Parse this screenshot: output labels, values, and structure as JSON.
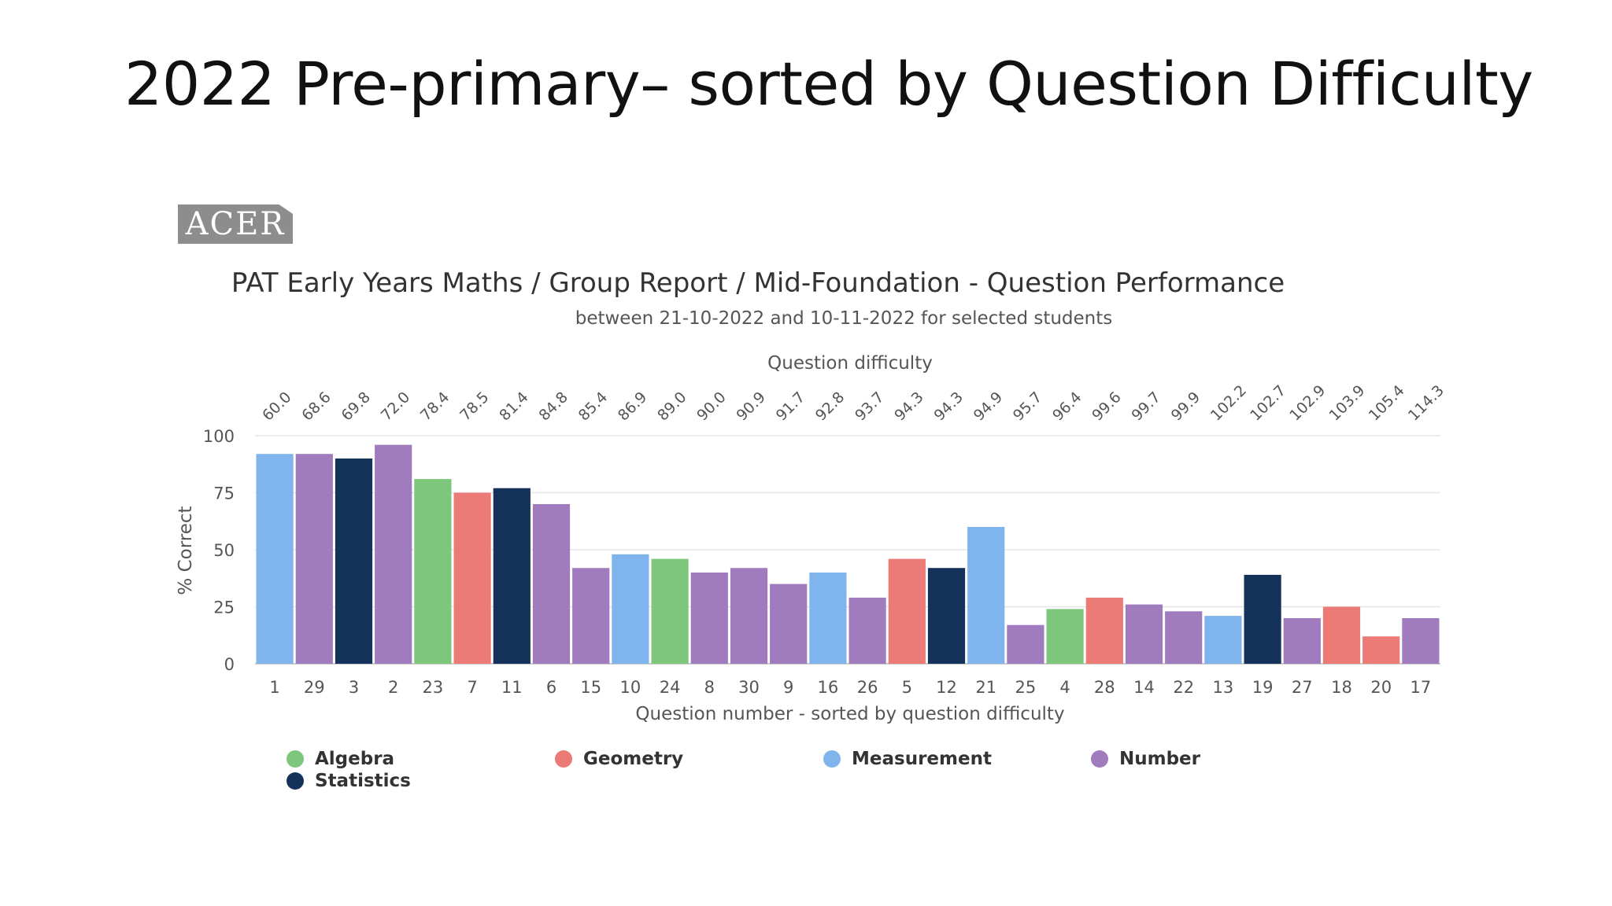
{
  "slide": {
    "title": "2022 Pre-primary– sorted by Question Difficulty"
  },
  "logo": {
    "text": "ACER"
  },
  "chart_data": {
    "type": "bar",
    "title": "PAT Early Years Maths / Group Report / Mid-Foundation - Question Performance",
    "subtitle": "between 21-10-2022 and 10-11-2022 for selected students",
    "xlabel": "Question number - sorted by question difficulty",
    "ylabel": "% Correct",
    "top_axis_label": "Question difficulty",
    "ylim": [
      0,
      100
    ],
    "yticks": [
      0,
      25,
      50,
      75,
      100
    ],
    "grid": true,
    "legend_position": "bottom-left",
    "categories": [
      "1",
      "29",
      "3",
      "2",
      "23",
      "7",
      "11",
      "6",
      "15",
      "10",
      "24",
      "8",
      "30",
      "9",
      "16",
      "26",
      "5",
      "12",
      "21",
      "25",
      "4",
      "28",
      "14",
      "22",
      "13",
      "19",
      "27",
      "18",
      "20",
      "17"
    ],
    "difficulty": [
      "60.0",
      "68.6",
      "69.8",
      "72.0",
      "78.4",
      "78.5",
      "81.4",
      "84.8",
      "85.4",
      "86.9",
      "89.0",
      "90.0",
      "90.9",
      "91.7",
      "92.8",
      "93.7",
      "94.3",
      "94.3",
      "94.9",
      "95.7",
      "96.4",
      "99.6",
      "99.7",
      "99.9",
      "102.2",
      "102.7",
      "102.9",
      "103.9",
      "105.4",
      "114.3"
    ],
    "values": [
      92,
      92,
      90,
      96,
      81,
      75,
      77,
      70,
      42,
      48,
      46,
      40,
      42,
      35,
      40,
      29,
      46,
      42,
      60,
      17,
      24,
      29,
      26,
      23,
      21,
      39,
      20,
      25,
      12,
      20
    ],
    "strands": [
      "Measurement",
      "Number",
      "Statistics",
      "Number",
      "Algebra",
      "Geometry",
      "Statistics",
      "Number",
      "Number",
      "Measurement",
      "Algebra",
      "Number",
      "Number",
      "Number",
      "Measurement",
      "Number",
      "Geometry",
      "Statistics",
      "Measurement",
      "Number",
      "Algebra",
      "Geometry",
      "Number",
      "Number",
      "Measurement",
      "Statistics",
      "Number",
      "Geometry",
      "Geometry",
      "Number"
    ],
    "series": [
      {
        "name": "Algebra",
        "color": "#7dc67b"
      },
      {
        "name": "Geometry",
        "color": "#ec7b78"
      },
      {
        "name": "Measurement",
        "color": "#80b4ec"
      },
      {
        "name": "Number",
        "color": "#a07cbf"
      },
      {
        "name": "Statistics",
        "color": "#15325a"
      }
    ]
  }
}
